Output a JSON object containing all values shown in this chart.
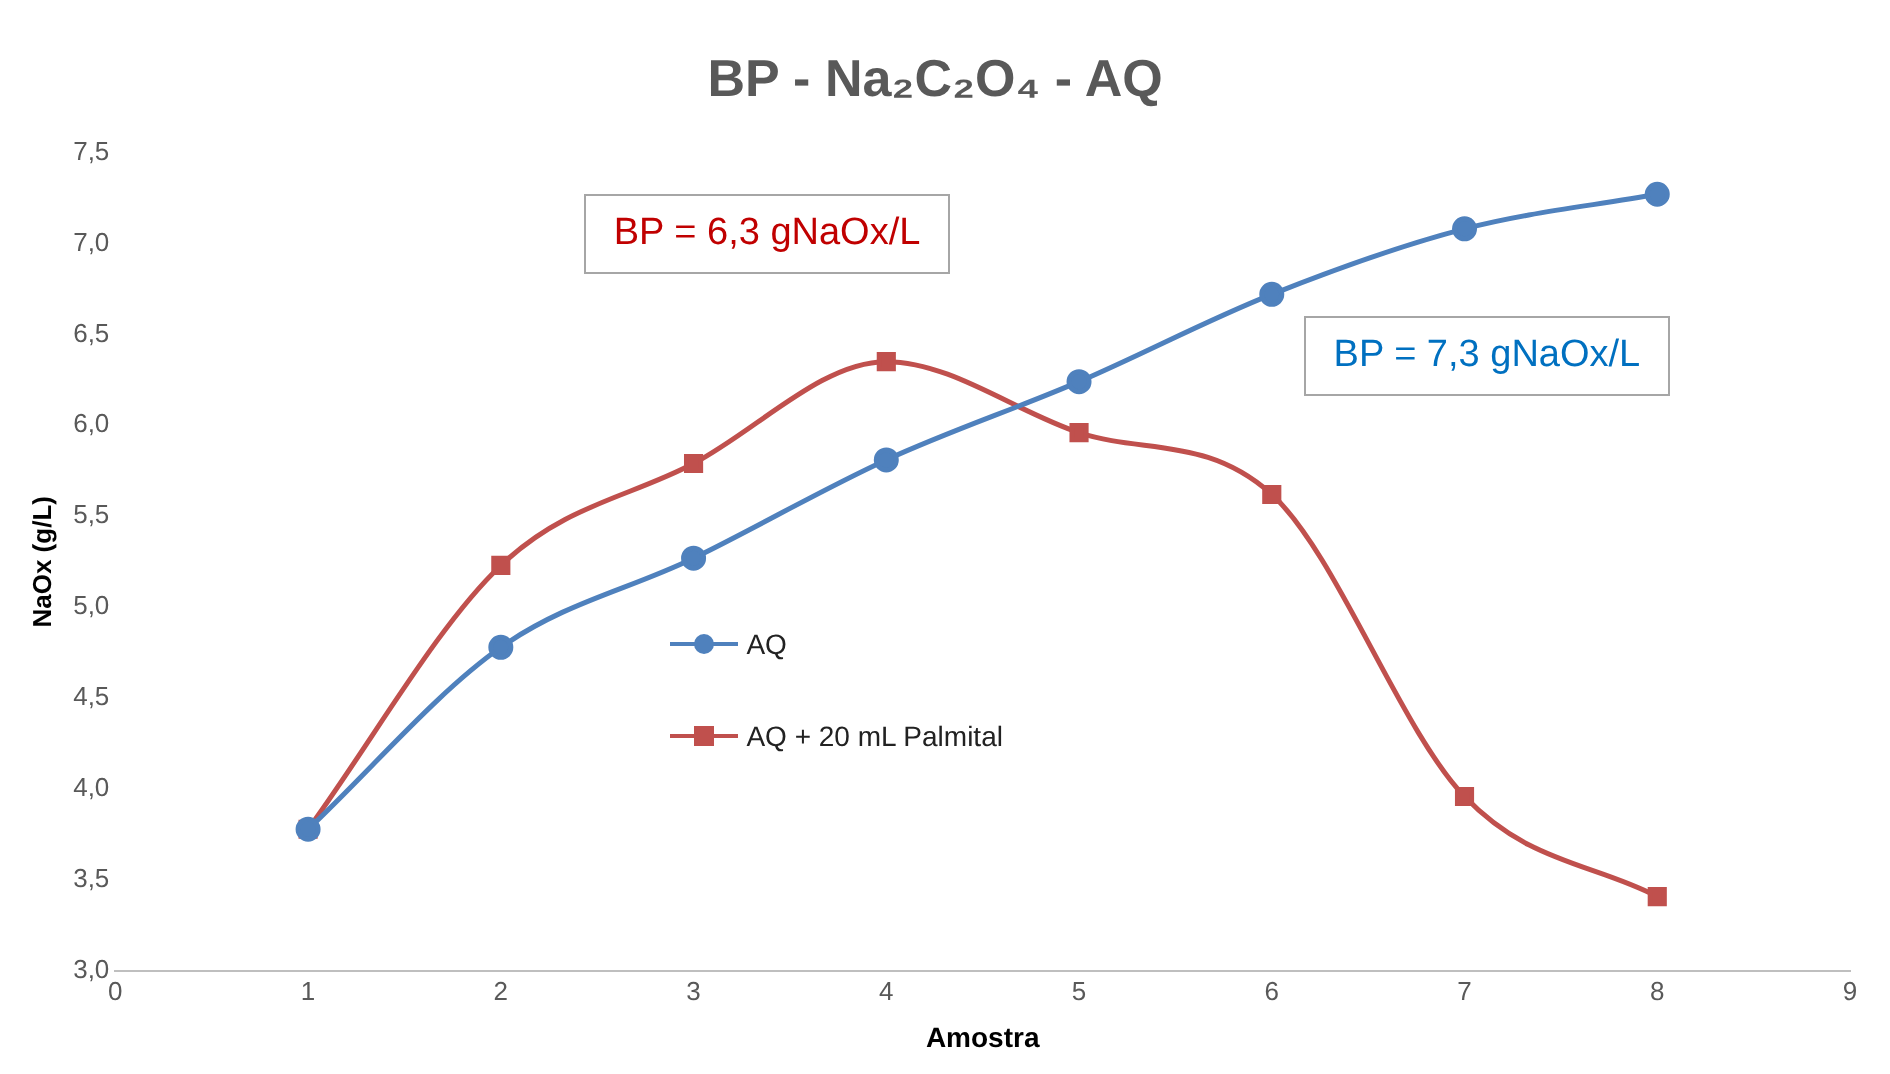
{
  "chart_data": {
    "type": "line",
    "title": "BP - Na₂C₂O₄ - AQ",
    "xlabel": "Amostra",
    "ylabel": "NaOx (g/L)",
    "x": [
      1,
      2,
      3,
      4,
      5,
      6,
      7,
      8
    ],
    "series": [
      {
        "name": "AQ",
        "color": "#4f81bd",
        "values": [
          3.78,
          4.78,
          5.27,
          5.81,
          6.24,
          6.72,
          7.08,
          7.27
        ]
      },
      {
        "name": "AQ + 20 mL Palmital",
        "color": "#c0504d",
        "marker": "square",
        "values": [
          3.78,
          5.23,
          5.79,
          6.35,
          5.96,
          5.62,
          3.96,
          3.41
        ]
      }
    ],
    "xlim": [
      0,
      9
    ],
    "xticks": [
      0,
      1,
      2,
      3,
      4,
      5,
      6,
      7,
      8,
      9
    ],
    "ylim": [
      3,
      7.5
    ],
    "yticks": [
      {
        "value": 3,
        "label": "3,0"
      },
      {
        "value": 3.5,
        "label": "3,5"
      },
      {
        "value": 4,
        "label": "4,0"
      },
      {
        "value": 4.5,
        "label": "4,5"
      },
      {
        "value": 5,
        "label": "5,0"
      },
      {
        "value": 5.5,
        "label": "5,5"
      },
      {
        "value": 6,
        "label": "6,0"
      },
      {
        "value": 6.5,
        "label": "6,5"
      },
      {
        "value": 7,
        "label": "7,0"
      },
      {
        "value": 7.5,
        "label": "7,5"
      }
    ],
    "annotations": [
      "BP = 6,3 gNaOx/L",
      "BP = 7,3 gNaOx/L"
    ],
    "grid": false,
    "legend": "left",
    "marker": "circle",
    "line_style": "solid"
  }
}
